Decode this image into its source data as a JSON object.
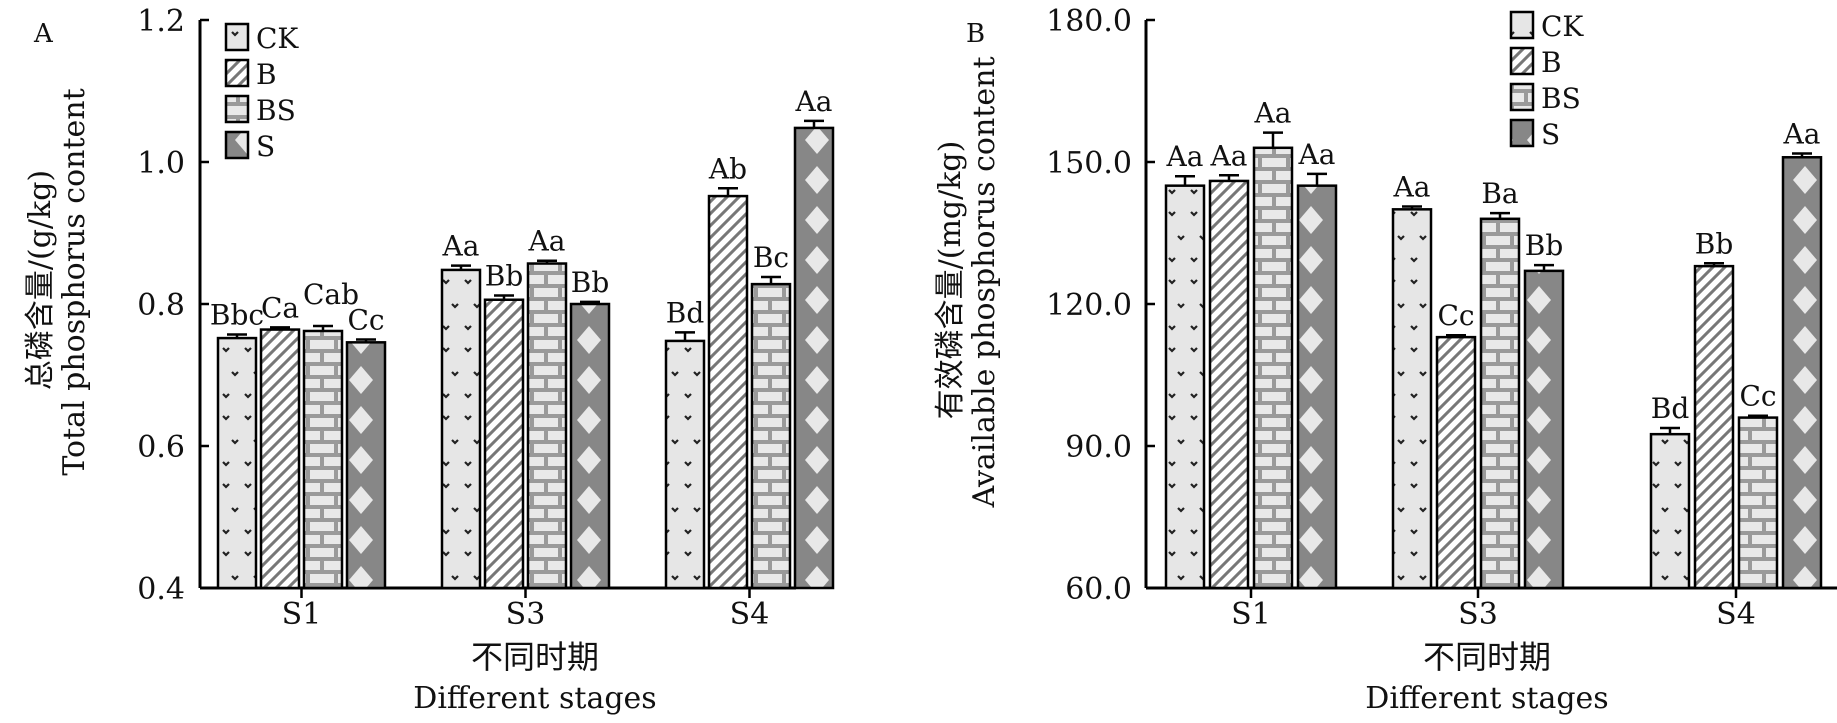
{
  "panels": [
    {
      "panel_label": "A",
      "ylabel_cn": "总磷含量/(g/kg)",
      "ylabel_en": "Total phosphorus content",
      "xlabel_cn": "不同时期",
      "xlabel_en": "Different stages"
    },
    {
      "panel_label": "B",
      "ylabel_cn": "有效磷含量/(mg/kg)",
      "ylabel_en": "Available phosphorus content",
      "xlabel_cn": "不同时期",
      "xlabel_en": "Different stages"
    }
  ],
  "chart_data": [
    {
      "type": "bar",
      "categories": [
        "S1",
        "S3",
        "S4"
      ],
      "ylim": [
        0.4,
        1.2
      ],
      "yticks": [
        "0.4",
        "0.6",
        "0.8",
        "1.0",
        "1.2"
      ],
      "series": [
        {
          "name": "CK",
          "pattern": "dots",
          "values": [
            0.752,
            0.848,
            0.748
          ],
          "errors": [
            0.005,
            0.006,
            0.012
          ],
          "labels": [
            "Bbc",
            "Aa",
            "Bd"
          ]
        },
        {
          "name": "B",
          "pattern": "diagonal",
          "values": [
            0.764,
            0.806,
            0.952
          ],
          "errors": [
            0.003,
            0.006,
            0.011
          ],
          "labels": [
            "Ca",
            "Bb",
            "Ab"
          ]
        },
        {
          "name": "BS",
          "pattern": "brick",
          "values": [
            0.762,
            0.857,
            0.828
          ],
          "errors": [
            0.007,
            0.004,
            0.01
          ],
          "labels": [
            "Cab",
            "Aa",
            "Bc"
          ]
        },
        {
          "name": "S",
          "pattern": "diamond",
          "values": [
            0.746,
            0.8,
            1.048
          ],
          "errors": [
            0.004,
            0.003,
            0.01
          ],
          "labels": [
            "Cc",
            "Bb",
            "Aa"
          ]
        }
      ],
      "legend_position": "top-left"
    },
    {
      "type": "bar",
      "categories": [
        "S1",
        "S3",
        "S4"
      ],
      "ylim": [
        60.0,
        180.0
      ],
      "yticks": [
        "60.0",
        "90.0",
        "120.0",
        "150.0",
        "180.0"
      ],
      "series": [
        {
          "name": "CK",
          "pattern": "dots",
          "values": [
            145.0,
            140.0,
            92.5
          ],
          "errors": [
            2.0,
            0.6,
            1.3
          ],
          "labels": [
            "Aa",
            "Aa",
            "Bd"
          ]
        },
        {
          "name": "B",
          "pattern": "diagonal",
          "values": [
            146.0,
            113.0,
            128.0
          ],
          "errors": [
            1.2,
            0.4,
            0.6
          ],
          "labels": [
            "Aa",
            "Cc",
            "Bb"
          ]
        },
        {
          "name": "BS",
          "pattern": "brick",
          "values": [
            153.0,
            138.0,
            96.0
          ],
          "errors": [
            3.2,
            1.2,
            0.4
          ],
          "labels": [
            "Aa",
            "Ba",
            "Cc"
          ]
        },
        {
          "name": "S",
          "pattern": "diamond",
          "values": [
            145.0,
            127.0,
            151.0
          ],
          "errors": [
            2.5,
            1.2,
            0.8
          ],
          "labels": [
            "Aa",
            "Bb",
            "Aa"
          ]
        }
      ],
      "legend_position": "top-right"
    }
  ]
}
